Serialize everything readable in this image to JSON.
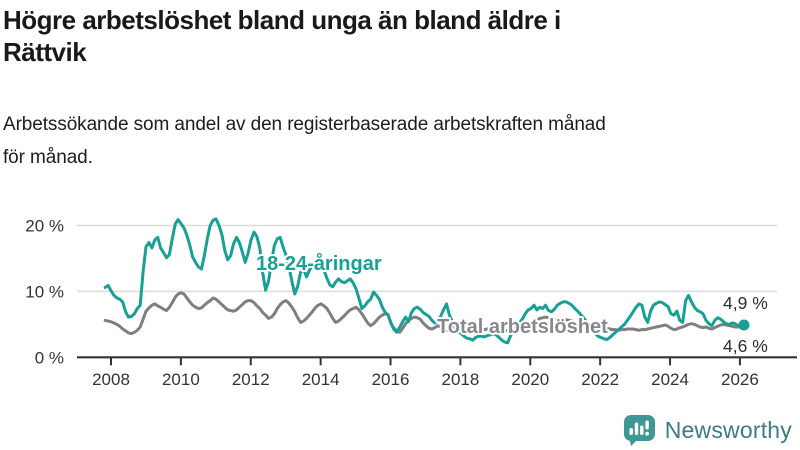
{
  "header": {
    "title_line1": "Högre arbetslöshet bland unga än bland äldre i",
    "title_line2": "Rättvik",
    "subtitle_line1": "Arbetssökande som andel av den registerbaserade arbetskraften månad",
    "subtitle_line2": "för månad."
  },
  "branding": {
    "logo_text": "Newsworthy",
    "logo_icon": "bar-chart-speech-bubble-icon",
    "logo_teal": "#3f9894",
    "logo_text_color": "#3a7c81"
  },
  "colors": {
    "youth_line": "#17a093",
    "total_line": "#7f7f82",
    "total_label": "#88888c",
    "gridline": "#dcdcdc",
    "axis": "#333333",
    "text": "#191919"
  },
  "chart_data": {
    "type": "line",
    "title": "Högre arbetslöshet bland unga än bland äldre i Rättvik",
    "subtitle": "Arbetssökande som andel av den registerbaserade arbetskraften månad för månad.",
    "unit": "%",
    "x_start": "2007-11",
    "x_end": "2026-02",
    "x_interval": "monthly",
    "ylim": [
      0,
      22
    ],
    "grid": "horizontal",
    "legend_position": "inline-labels",
    "y_ticks": [
      {
        "label": "20 %",
        "value": 20
      },
      {
        "label": "10 %",
        "value": 10
      },
      {
        "label": "0 %",
        "value": 0
      }
    ],
    "x_ticks": [
      {
        "label": "2008",
        "year": 2008
      },
      {
        "label": "2010",
        "year": 2010
      },
      {
        "label": "2012",
        "year": 2012
      },
      {
        "label": "2014",
        "year": 2014
      },
      {
        "label": "2016",
        "year": 2016
      },
      {
        "label": "2018",
        "year": 2018
      },
      {
        "label": "2020",
        "year": 2020
      },
      {
        "label": "2022",
        "year": 2022
      },
      {
        "label": "2024",
        "year": 2024
      },
      {
        "label": "2026",
        "year": 2026
      }
    ],
    "series": [
      {
        "name": "18-24-åringar",
        "color": "#17a093",
        "end_label": "4,9 %",
        "end_value": 4.9,
        "values": [
          10.6,
          10.9,
          10.1,
          9.4,
          9.0,
          8.8,
          8.4,
          6.9,
          6.1,
          6.2,
          6.6,
          7.4,
          7.9,
          13.0,
          16.8,
          17.4,
          16.6,
          17.8,
          18.2,
          16.6,
          15.9,
          15.1,
          15.6,
          18.0,
          20.2,
          20.9,
          20.3,
          19.6,
          18.5,
          17.0,
          15.2,
          14.4,
          13.7,
          13.4,
          15.5,
          18.0,
          20.0,
          20.8,
          21.0,
          20.0,
          18.6,
          16.2,
          14.8,
          15.4,
          17.2,
          18.2,
          17.4,
          16.0,
          14.4,
          15.8,
          17.8,
          19.0,
          18.3,
          16.6,
          12.8,
          10.2,
          11.5,
          14.5,
          17.0,
          18.0,
          18.2,
          16.7,
          15.5,
          13.8,
          11.5,
          9.6,
          10.8,
          12.9,
          13.4,
          12.2,
          13.2,
          14.0,
          14.6,
          15.0,
          14.5,
          13.2,
          12.0,
          11.0,
          10.7,
          11.4,
          11.9,
          11.5,
          11.3,
          11.6,
          11.9,
          11.3,
          10.4,
          8.9,
          7.4,
          7.8,
          8.4,
          8.8,
          9.9,
          9.4,
          8.8,
          7.6,
          6.8,
          6.4,
          5.2,
          4.2,
          3.8,
          4.6,
          5.4,
          6.1,
          5.4,
          6.8,
          7.4,
          7.6,
          7.3,
          6.8,
          6.5,
          6.2,
          5.6,
          5.2,
          5.5,
          6.2,
          7.2,
          8.1,
          6.4,
          5.4,
          4.6,
          4.0,
          3.6,
          3.2,
          2.9,
          2.8,
          2.6,
          3.0,
          3.2,
          3.2,
          3.1,
          3.3,
          3.4,
          3.6,
          3.4,
          3.0,
          2.6,
          2.3,
          2.2,
          3.3,
          4.0,
          4.6,
          5.2,
          5.8,
          6.6,
          7.2,
          7.4,
          7.9,
          7.2,
          7.6,
          7.4,
          7.9,
          7.1,
          6.9,
          7.3,
          7.9,
          8.2,
          8.4,
          8.4,
          8.2,
          7.9,
          7.4,
          7.0,
          6.5,
          6.0,
          5.4,
          4.8,
          4.2,
          3.6,
          3.2,
          3.0,
          2.8,
          2.7,
          3.0,
          3.4,
          3.8,
          4.2,
          4.6,
          5.0,
          5.6,
          6.2,
          6.9,
          7.6,
          8.1,
          7.9,
          6.1,
          5.3,
          7.0,
          7.9,
          8.2,
          8.4,
          8.3,
          8.0,
          7.7,
          6.6,
          6.4,
          7.0,
          5.6,
          5.3,
          8.6,
          9.4,
          8.4,
          7.6,
          7.1,
          6.9,
          6.6,
          5.6,
          5.1,
          4.8,
          5.6,
          6.0,
          5.8,
          5.4,
          5.1,
          5.0,
          5.2,
          5.1,
          4.8,
          4.8,
          4.9
        ]
      },
      {
        "name": "Total arbetslöshet",
        "color": "#7f7f82",
        "end_label": "4,6 %",
        "end_value": 4.6,
        "values": [
          5.6,
          5.5,
          5.4,
          5.2,
          5.0,
          4.7,
          4.3,
          4.0,
          3.7,
          3.6,
          3.8,
          4.1,
          4.6,
          5.8,
          7.0,
          7.5,
          7.9,
          8.1,
          7.8,
          7.6,
          7.3,
          7.1,
          7.6,
          8.3,
          9.1,
          9.6,
          9.8,
          9.6,
          9.0,
          8.4,
          7.9,
          7.6,
          7.4,
          7.5,
          7.9,
          8.3,
          8.6,
          9.0,
          8.8,
          8.4,
          8.0,
          7.6,
          7.2,
          7.1,
          7.0,
          7.2,
          7.6,
          8.0,
          8.4,
          8.6,
          8.6,
          8.3,
          7.8,
          7.4,
          6.8,
          6.4,
          5.9,
          6.1,
          6.6,
          7.4,
          8.0,
          8.4,
          8.6,
          8.2,
          7.6,
          6.9,
          6.0,
          5.3,
          5.5,
          5.9,
          6.4,
          6.9,
          7.5,
          7.9,
          8.1,
          7.8,
          7.4,
          6.7,
          5.9,
          5.3,
          5.5,
          5.9,
          6.3,
          6.8,
          7.2,
          7.4,
          7.6,
          7.2,
          6.6,
          5.9,
          5.2,
          4.8,
          5.1,
          5.6,
          6.1,
          6.4,
          6.6,
          6.5,
          5.1,
          4.4,
          4.0,
          3.8,
          4.4,
          5.1,
          5.6,
          5.9,
          6.1,
          6.0,
          5.8,
          5.2,
          4.8,
          4.4,
          4.3,
          4.5,
          4.8,
          4.6,
          4.3,
          4.1,
          4.0,
          4.2,
          4.4,
          4.6,
          4.7,
          4.6,
          4.4,
          4.2,
          4.0,
          3.9,
          4.0,
          4.1,
          4.2,
          4.3,
          4.4,
          4.5,
          4.5,
          4.4,
          4.2,
          4.1,
          4.0,
          4.1,
          4.2,
          4.3,
          4.4,
          4.6,
          4.8,
          5.0,
          5.2,
          5.4,
          5.6,
          5.9,
          6.0,
          6.1,
          6.0,
          5.9,
          5.8,
          5.7,
          5.6,
          5.6,
          5.7,
          5.6,
          5.5,
          5.3,
          5.1,
          5.0,
          4.9,
          4.8,
          4.7,
          4.6,
          4.5,
          4.5,
          4.6,
          4.5,
          4.4,
          4.3,
          4.2,
          4.2,
          4.1,
          4.2,
          4.2,
          4.3,
          4.3,
          4.3,
          4.2,
          4.1,
          4.2,
          4.2,
          4.3,
          4.4,
          4.5,
          4.6,
          4.7,
          4.8,
          4.9,
          4.7,
          4.4,
          4.2,
          4.3,
          4.5,
          4.6,
          4.8,
          5.0,
          5.1,
          5.0,
          4.8,
          4.6,
          4.5,
          4.6,
          4.4,
          4.3,
          4.5,
          4.7,
          4.9,
          5.0,
          4.9,
          4.8,
          4.7,
          4.6,
          4.6,
          4.6,
          4.6
        ]
      }
    ]
  }
}
